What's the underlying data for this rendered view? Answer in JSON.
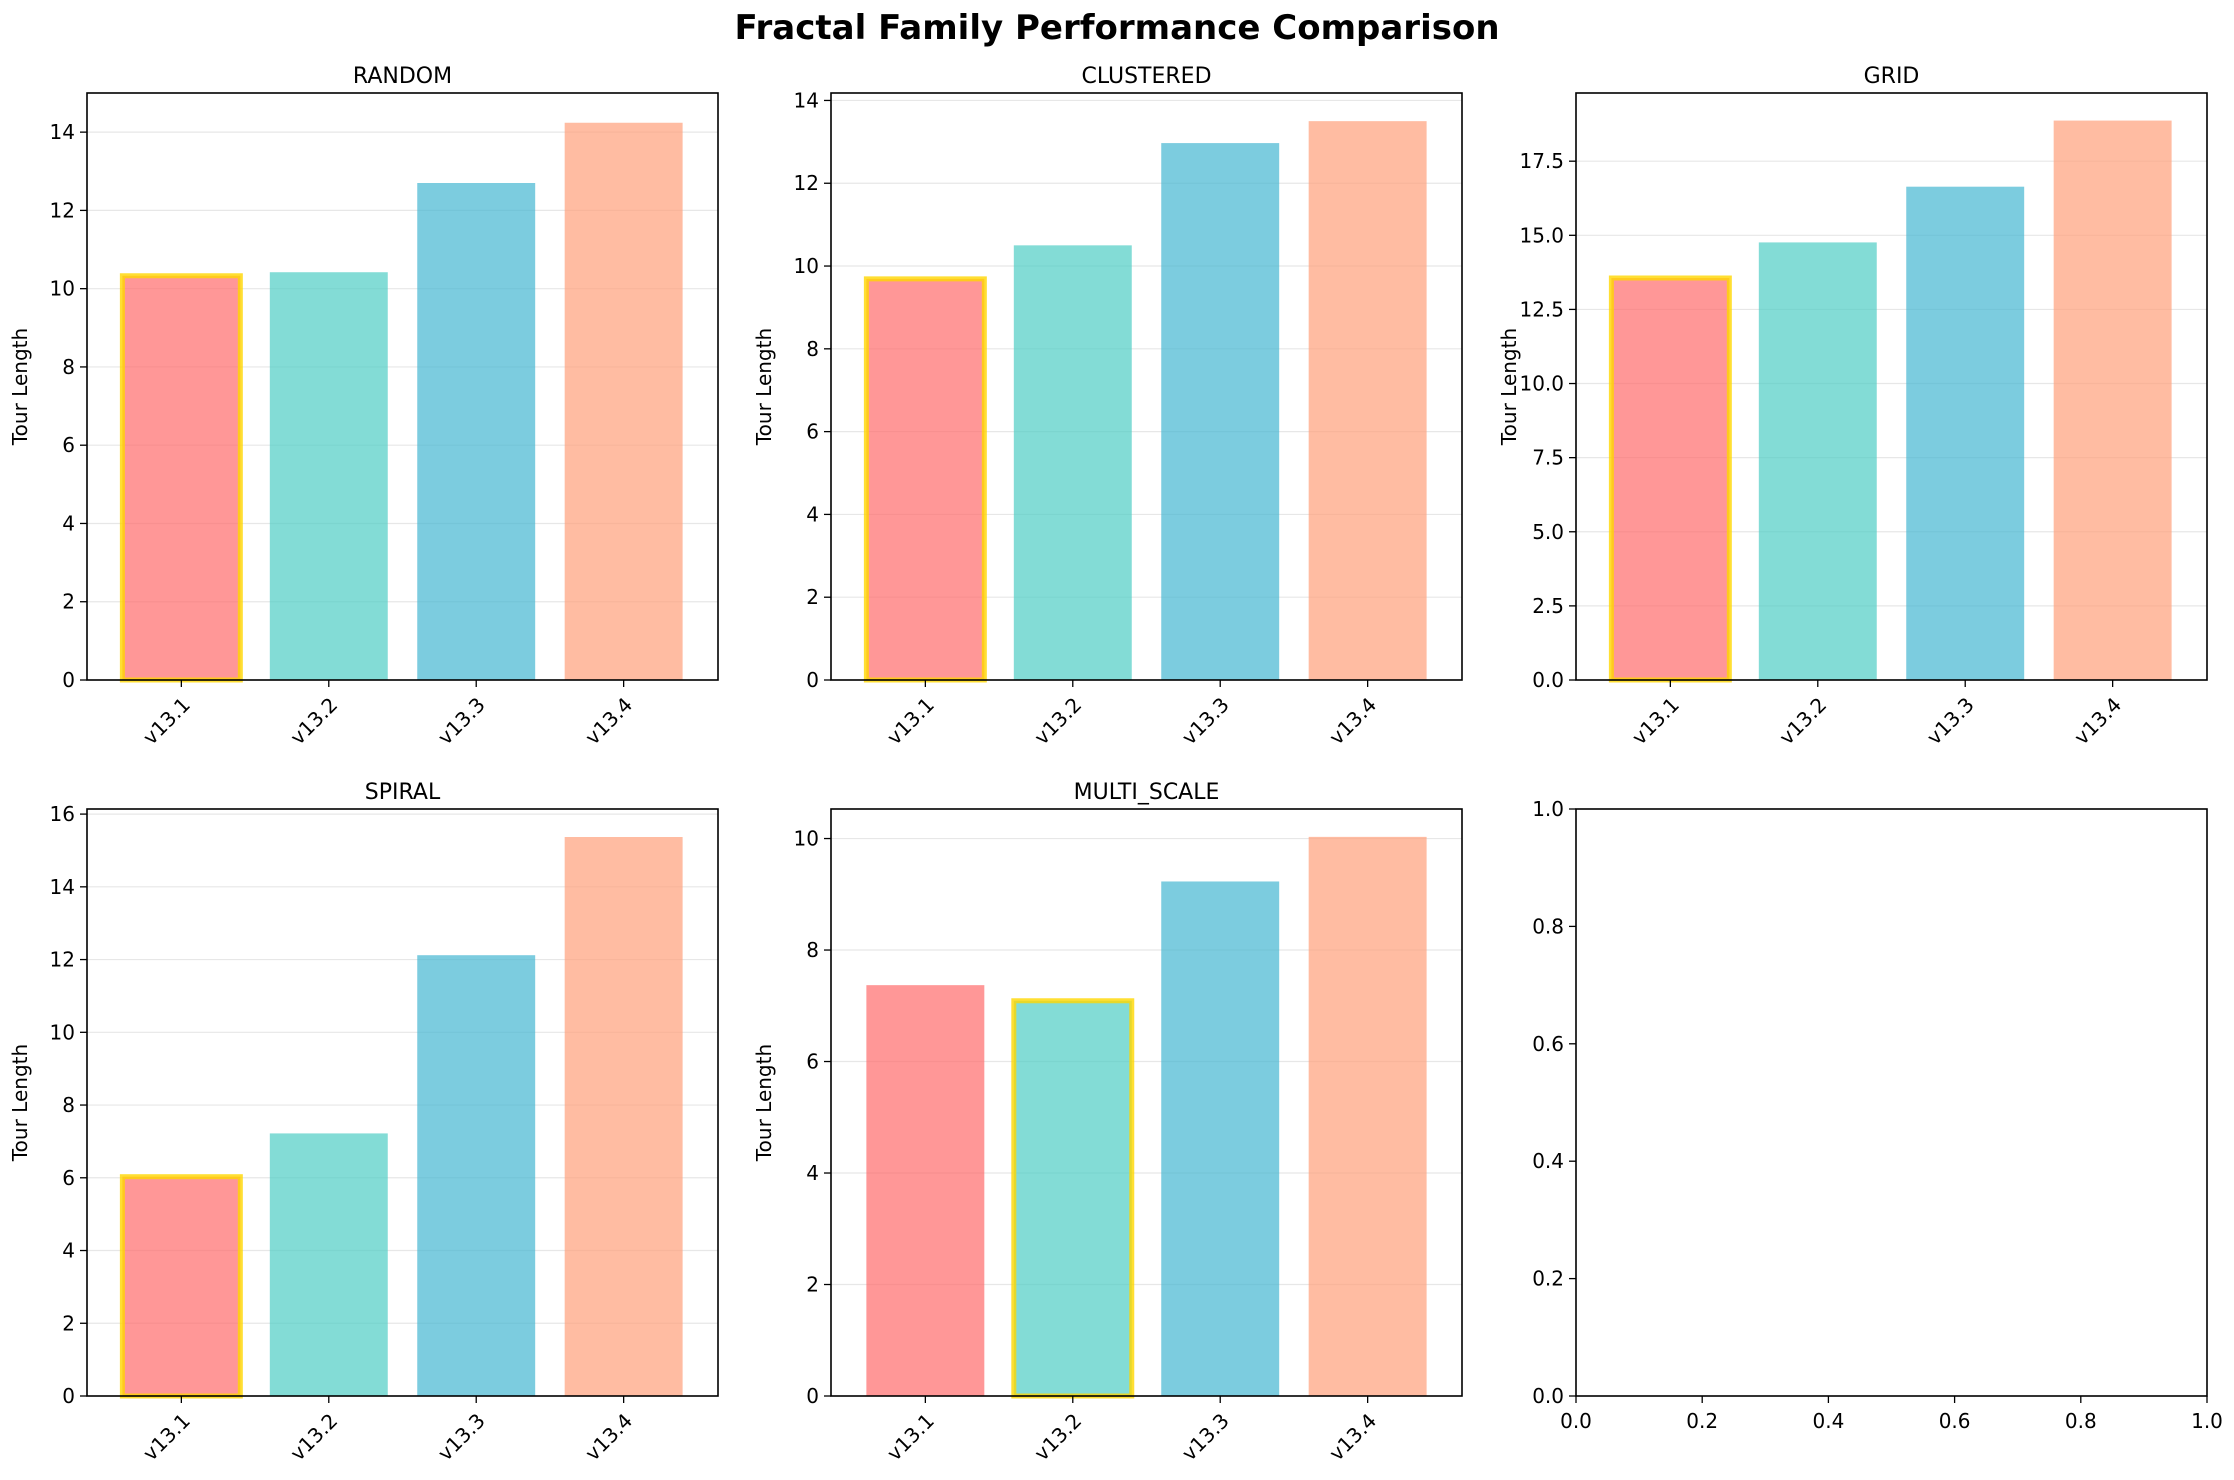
{
  "figure": {
    "suptitle": "Fractal Family Performance Comparison",
    "bar_colors": [
      "#FF6B6B",
      "#4ECDC4",
      "#45B7D1",
      "#FFA07A"
    ],
    "bar_alpha": 0.7,
    "highlight_color": "#FFD700"
  },
  "chart_data": [
    {
      "type": "bar",
      "title": "RANDOM",
      "xlabel": "",
      "ylabel": "Tour Length",
      "categories": [
        "v13.1",
        "v13.2",
        "v13.3",
        "v13.4"
      ],
      "values": [
        10.33,
        10.42,
        12.7,
        14.24
      ],
      "highlight_index": 0,
      "ylim": [
        0,
        15
      ],
      "yticks": [
        0,
        2,
        4,
        6,
        8,
        10,
        12,
        14
      ],
      "ytick_labels": [
        "0",
        "2",
        "4",
        "6",
        "8",
        "10",
        "12",
        "14"
      ],
      "grid": "y"
    },
    {
      "type": "bar",
      "title": "CLUSTERED",
      "xlabel": "",
      "ylabel": "Tour Length",
      "categories": [
        "v13.1",
        "v13.2",
        "v13.3",
        "v13.4"
      ],
      "values": [
        9.69,
        10.5,
        12.97,
        13.5
      ],
      "highlight_index": 0,
      "ylim": [
        0,
        14.18
      ],
      "yticks": [
        0,
        2,
        4,
        6,
        8,
        10,
        12,
        14
      ],
      "ytick_labels": [
        "0",
        "2",
        "4",
        "6",
        "8",
        "10",
        "12",
        "14"
      ],
      "grid": "y"
    },
    {
      "type": "bar",
      "title": "GRID",
      "xlabel": "",
      "ylabel": "Tour Length",
      "categories": [
        "v13.1",
        "v13.2",
        "v13.3",
        "v13.4"
      ],
      "values": [
        13.56,
        14.76,
        16.64,
        18.87
      ],
      "highlight_index": 0,
      "ylim": [
        0,
        19.8
      ],
      "yticks": [
        0,
        2.5,
        5,
        7.5,
        10,
        12.5,
        15,
        17.5
      ],
      "ytick_labels": [
        "0.0",
        "2.5",
        "5.0",
        "7.5",
        "10.0",
        "12.5",
        "15.0",
        "17.5"
      ],
      "grid": "y"
    },
    {
      "type": "bar",
      "title": "SPIRAL",
      "xlabel": "",
      "ylabel": "Tour Length",
      "categories": [
        "v13.1",
        "v13.2",
        "v13.3",
        "v13.4"
      ],
      "values": [
        6.03,
        7.22,
        12.12,
        15.37
      ],
      "highlight_index": 0,
      "ylim": [
        0,
        16.14
      ],
      "yticks": [
        0,
        2,
        4,
        6,
        8,
        10,
        12,
        14,
        16
      ],
      "ytick_labels": [
        "0",
        "2",
        "4",
        "6",
        "8",
        "10",
        "12",
        "14",
        "16"
      ],
      "grid": "y"
    },
    {
      "type": "bar",
      "title": "MULTI_SCALE",
      "xlabel": "",
      "ylabel": "Tour Length",
      "categories": [
        "v13.1",
        "v13.2",
        "v13.3",
        "v13.4"
      ],
      "values": [
        7.37,
        7.09,
        9.23,
        10.03
      ],
      "highlight_index": 1,
      "ylim": [
        0,
        10.53
      ],
      "yticks": [
        0,
        2,
        4,
        6,
        8,
        10
      ],
      "ytick_labels": [
        "0",
        "2",
        "4",
        "6",
        "8",
        "10"
      ],
      "grid": "y"
    },
    {
      "type": "empty",
      "title": "",
      "xlim": [
        0,
        1
      ],
      "ylim": [
        0,
        1
      ],
      "xticks": [
        0,
        0.2,
        0.4,
        0.6,
        0.8,
        1
      ],
      "xtick_labels": [
        "0.0",
        "0.2",
        "0.4",
        "0.6",
        "0.8",
        "1.0"
      ],
      "yticks": [
        0,
        0.2,
        0.4,
        0.6,
        0.8,
        1
      ],
      "ytick_labels": [
        "0.0",
        "0.2",
        "0.4",
        "0.6",
        "0.8",
        "1.0"
      ]
    }
  ]
}
